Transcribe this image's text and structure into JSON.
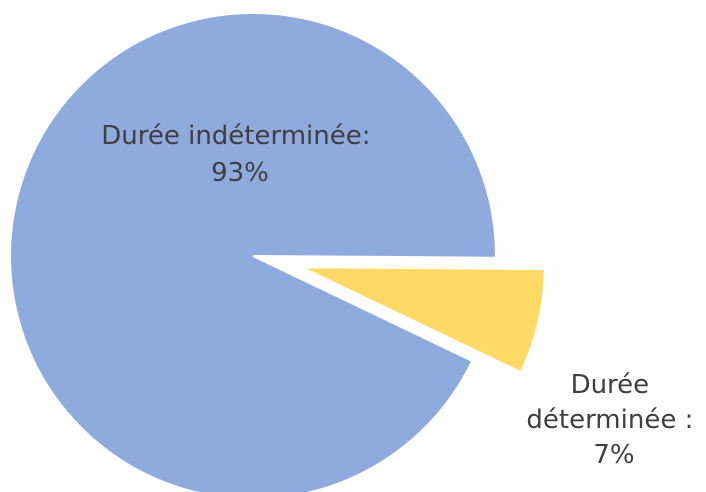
{
  "chart_data": {
    "type": "pie",
    "title": "",
    "slices": [
      {
        "name": "Durée indéterminée",
        "value": 93,
        "label_lines": [
          "Durée indéterminée:",
          "93%"
        ],
        "color": "#8faadc",
        "exploded": false
      },
      {
        "name": "Durée déterminée",
        "value": 7,
        "label_lines": [
          "Durée",
          "déterminée :",
          "7%"
        ],
        "color": "#ffd966",
        "exploded": true
      }
    ],
    "legend": "none"
  }
}
